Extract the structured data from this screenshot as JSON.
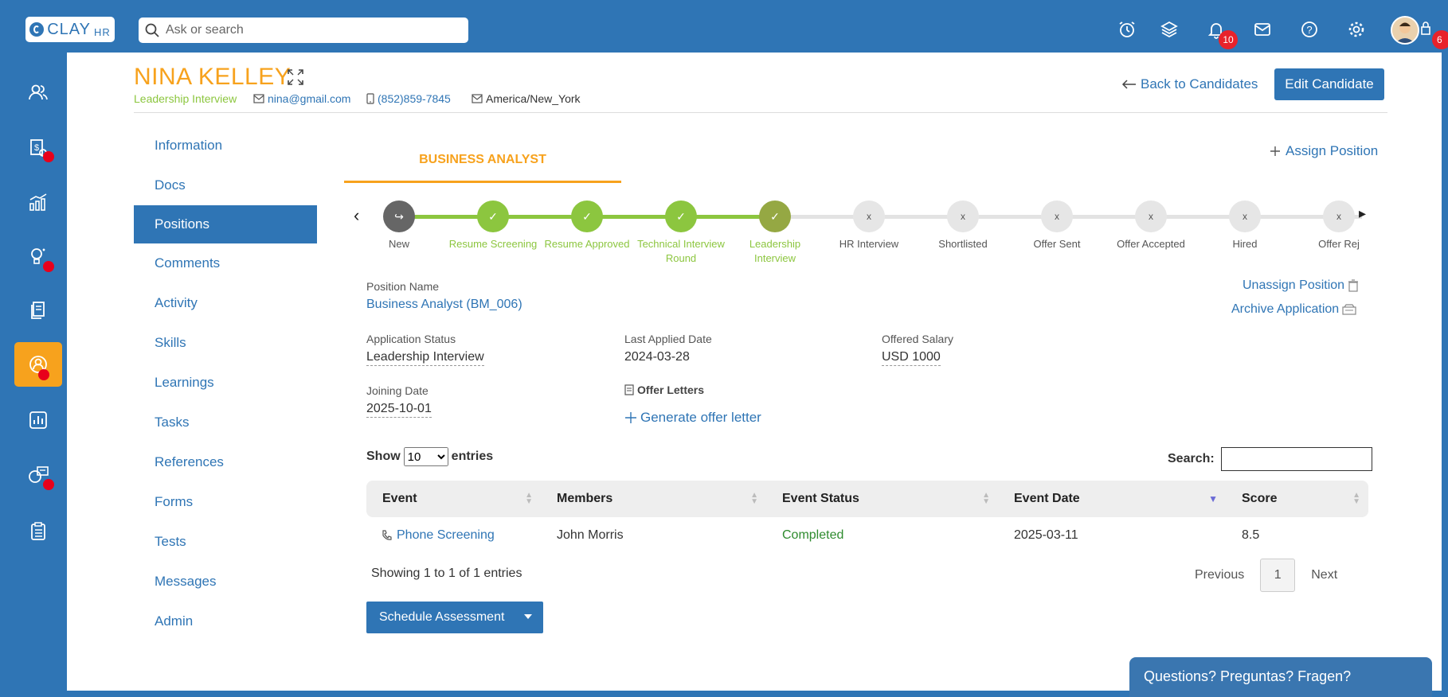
{
  "topbar": {
    "logo_text": "CLAY",
    "logo_suffix": "HR",
    "search_placeholder": "Ask or search",
    "notification_count": "10",
    "user_badge_count": "6"
  },
  "candidate": {
    "name": "NINA KELLEY",
    "stage": "Leadership Interview",
    "email": "nina@gmail.com",
    "phone": "(852)859-7845",
    "timezone": "America/New_York"
  },
  "header": {
    "back_label": "Back to Candidates",
    "edit_label": "Edit Candidate"
  },
  "sidenav": {
    "items": [
      {
        "label": "Information"
      },
      {
        "label": "Docs"
      },
      {
        "label": "Positions"
      },
      {
        "label": "Comments"
      },
      {
        "label": "Activity"
      },
      {
        "label": "Skills"
      },
      {
        "label": "Learnings"
      },
      {
        "label": "Tasks"
      },
      {
        "label": "References"
      },
      {
        "label": "Forms"
      },
      {
        "label": "Tests"
      },
      {
        "label": "Messages"
      },
      {
        "label": "Admin"
      }
    ]
  },
  "position_tab": {
    "title": "BUSINESS ANALYST",
    "assign_label": "Assign Position"
  },
  "pipeline": {
    "stages": [
      {
        "label": "New",
        "state": "first"
      },
      {
        "label": "Resume Screening",
        "state": "done"
      },
      {
        "label": "Resume Approved",
        "state": "done"
      },
      {
        "label": "Technical Interview Round",
        "state": "done"
      },
      {
        "label": "Leadership Interview",
        "state": "current"
      },
      {
        "label": "HR Interview",
        "state": "pending"
      },
      {
        "label": "Shortlisted",
        "state": "pending"
      },
      {
        "label": "Offer Sent",
        "state": "pending"
      },
      {
        "label": "Offer Accepted",
        "state": "pending"
      },
      {
        "label": "Hired",
        "state": "pending"
      },
      {
        "label": "Offer Rej",
        "state": "pending"
      }
    ]
  },
  "details": {
    "position_name_label": "Position Name",
    "position_name_value": "Business Analyst (BM_006)",
    "unassign_label": "Unassign Position",
    "archive_label": "Archive Application",
    "app_status_label": "Application Status",
    "app_status_value": "Leadership Interview",
    "last_applied_label": "Last Applied Date",
    "last_applied_value": "2024-03-28",
    "offered_salary_label": "Offered Salary",
    "offered_salary_value": "USD 1000",
    "joining_date_label": "Joining Date",
    "joining_date_value": "2025-10-01",
    "offer_letters_label": "Offer Letters",
    "generate_label": "Generate offer letter"
  },
  "table_controls": {
    "show_label": "Show",
    "entries_label": "entries",
    "page_size": "10",
    "search_label": "Search:"
  },
  "table": {
    "headers": [
      "Event",
      "Members",
      "Event Status",
      "Event Date",
      "Score"
    ],
    "rows": [
      {
        "event": "Phone Screening",
        "members": "John Morris",
        "status": "Completed",
        "date": "2025-03-11",
        "score": "8.5"
      }
    ]
  },
  "pagination": {
    "showing": "Showing 1 to 1 of 1 entries",
    "previous": "Previous",
    "page": "1",
    "next": "Next"
  },
  "actions": {
    "schedule_label": "Schedule Assessment"
  },
  "help": {
    "label": "Questions? Preguntas? Fragen?"
  },
  "colors": {
    "primary": "#2f75b5",
    "accent": "#f7a21d",
    "done_green": "#8cc63f",
    "status_green": "#2e8b2e",
    "badge_red": "#e8222a"
  }
}
